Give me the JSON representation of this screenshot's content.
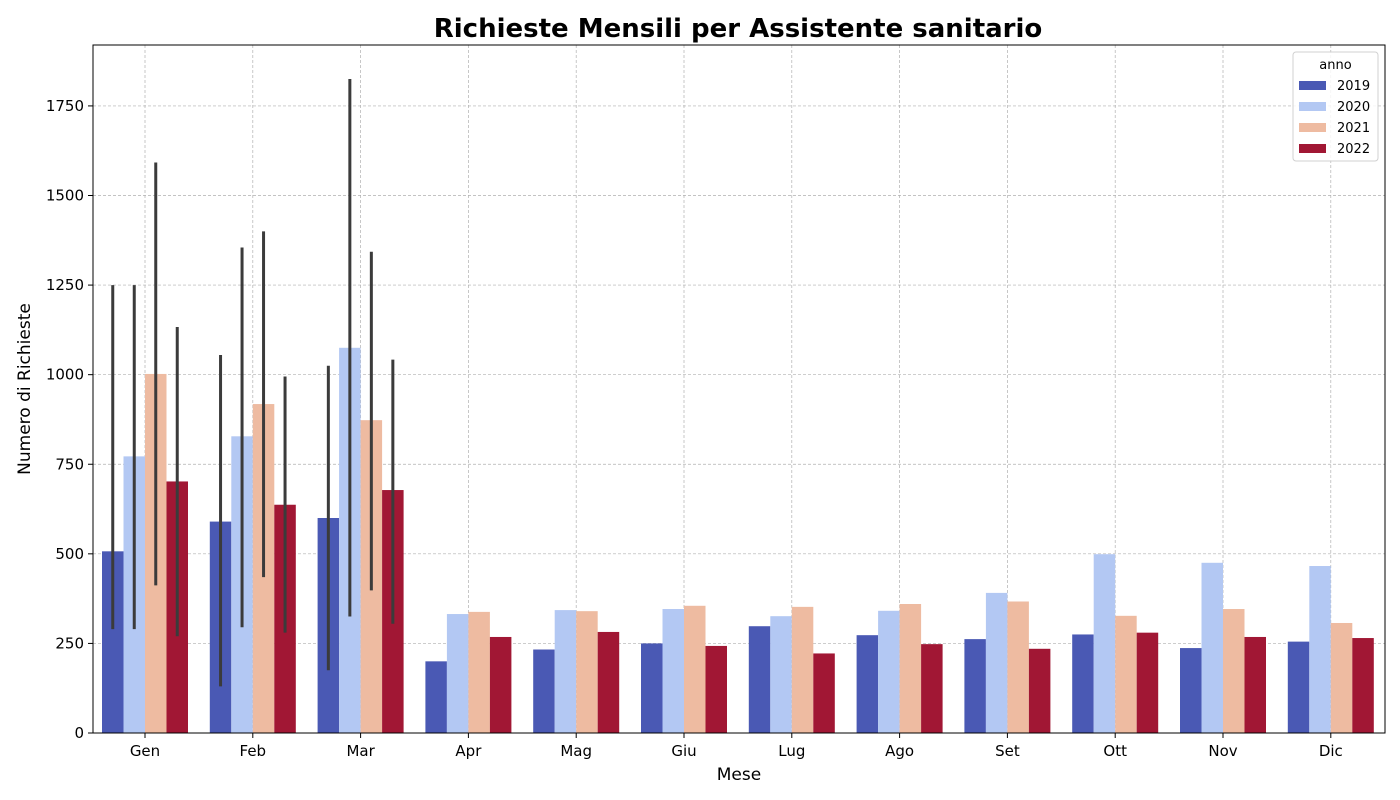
{
  "chart_data": {
    "type": "bar",
    "title": "Richieste Mensili per Assistente sanitario",
    "xlabel": "Mese",
    "ylabel": "Numero di Richieste",
    "categories": [
      "Gen",
      "Feb",
      "Mar",
      "Apr",
      "Mag",
      "Giu",
      "Lug",
      "Ago",
      "Set",
      "Ott",
      "Nov",
      "Dic"
    ],
    "ylim": [
      0,
      1920
    ],
    "yticks": [
      0,
      250,
      500,
      750,
      1000,
      1250,
      1500,
      1750
    ],
    "grid": true,
    "legend": {
      "title": "anno",
      "placement": "top-right"
    },
    "series": [
      {
        "name": "2019",
        "color": "#4a59b4",
        "values": [
          507,
          590,
          600,
          200,
          233,
          250,
          298,
          273,
          262,
          275,
          237,
          255
        ],
        "err_low": [
          290,
          130,
          175,
          null,
          null,
          null,
          null,
          null,
          null,
          null,
          null,
          null
        ],
        "err_high": [
          1250,
          1055,
          1025,
          null,
          null,
          null,
          null,
          null,
          null,
          null,
          null,
          null
        ]
      },
      {
        "name": "2020",
        "color": "#b3c8f3",
        "values": [
          772,
          828,
          1075,
          332,
          343,
          346,
          326,
          341,
          391,
          499,
          475,
          466
        ],
        "err_low": [
          290,
          295,
          325,
          null,
          null,
          null,
          null,
          null,
          null,
          null,
          null,
          null
        ],
        "err_high": [
          1250,
          1355,
          1825,
          null,
          null,
          null,
          null,
          null,
          null,
          null,
          null,
          null
        ]
      },
      {
        "name": "2021",
        "color": "#eebba1",
        "values": [
          1002,
          918,
          873,
          338,
          340,
          355,
          352,
          360,
          367,
          327,
          346,
          307
        ],
        "err_low": [
          412,
          435,
          398,
          null,
          null,
          null,
          null,
          null,
          null,
          null,
          null,
          null
        ],
        "err_high": [
          1592,
          1400,
          1343,
          null,
          null,
          null,
          null,
          null,
          null,
          null,
          null,
          null
        ]
      },
      {
        "name": "2022",
        "color": "#a11734",
        "values": [
          702,
          637,
          678,
          268,
          282,
          243,
          222,
          248,
          235,
          280,
          268,
          265
        ],
        "err_low": [
          270,
          280,
          305,
          null,
          null,
          null,
          null,
          null,
          null,
          null,
          null,
          null
        ],
        "err_high": [
          1133,
          995,
          1042,
          null,
          null,
          null,
          null,
          null,
          null,
          null,
          null,
          null
        ]
      }
    ]
  }
}
